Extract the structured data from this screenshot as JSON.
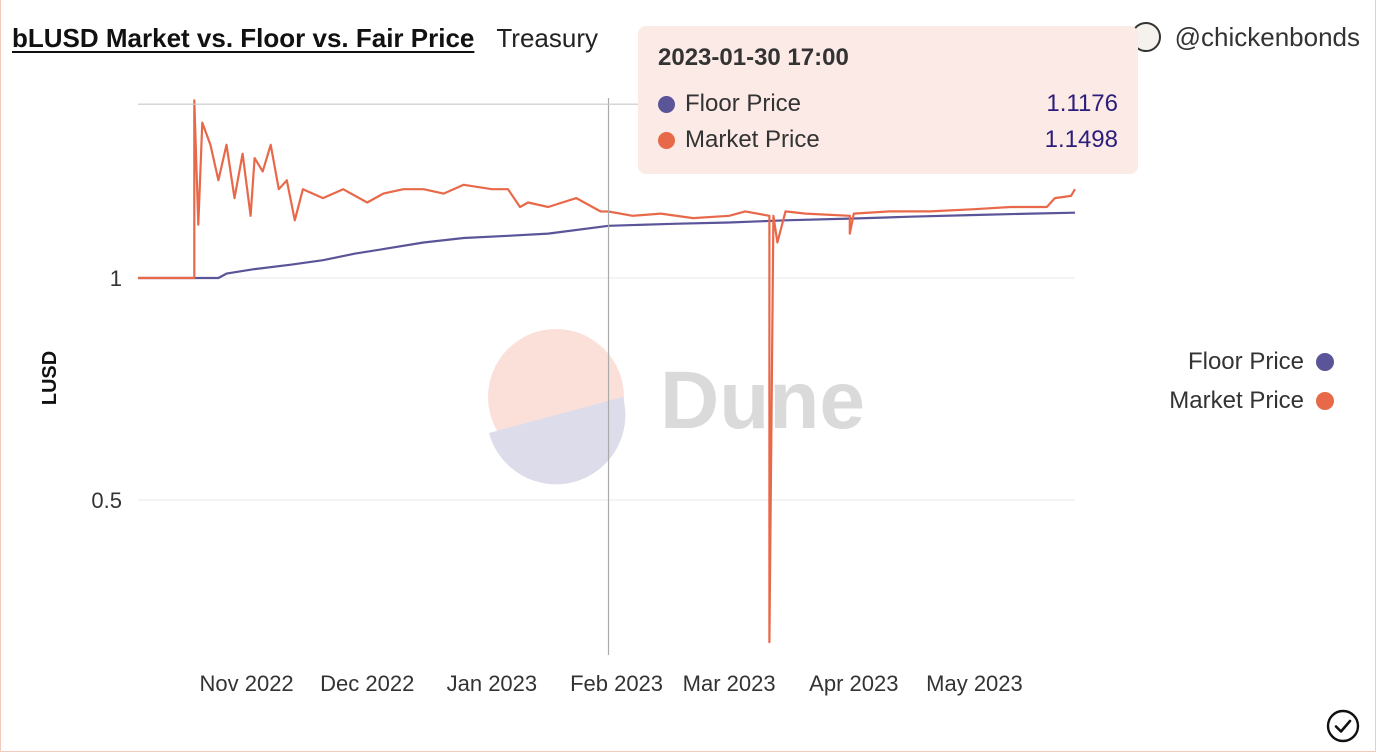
{
  "header": {
    "title": "bLUSD Market vs. Floor vs. Fair Price",
    "subtitle": "Treasury",
    "author": "@chickenbonds"
  },
  "tooltip": {
    "title": "2023-01-30 17:00",
    "rows": [
      {
        "name": "Floor Price",
        "value": "1.1176",
        "color": "#5a5499"
      },
      {
        "name": "Market Price",
        "value": "1.1498",
        "color": "#e8694a"
      }
    ]
  },
  "legend": [
    {
      "name": "Floor Price",
      "color": "#5a5499"
    },
    {
      "name": "Market Price",
      "color": "#e8694a"
    }
  ],
  "watermark": "Dune",
  "chart_data": {
    "type": "line",
    "title": "bLUSD Market vs. Floor vs. Fair Price",
    "ylabel": "LUSD",
    "xlabel": "",
    "y_ticks": [
      {
        "value": 1,
        "label": "1"
      },
      {
        "value": 0.5,
        "label": "0.5"
      }
    ],
    "x_ticks": [
      "Nov 2022",
      "Dec 2022",
      "Jan 2023",
      "Feb 2023",
      "Mar 2023",
      "Apr 2023",
      "May 2023"
    ],
    "ylim": [
      0.15,
      1.43
    ],
    "grid": true,
    "legend_position": "right",
    "series": [
      {
        "name": "Floor Price",
        "color": "#5a5499",
        "points": [
          [
            "2022-10-05",
            1.0
          ],
          [
            "2022-10-19",
            1.0
          ],
          [
            "2022-10-25",
            1.0
          ],
          [
            "2022-10-27",
            1.01
          ],
          [
            "2022-11-03",
            1.02
          ],
          [
            "2022-11-12",
            1.03
          ],
          [
            "2022-11-20",
            1.04
          ],
          [
            "2022-11-28",
            1.055
          ],
          [
            "2022-12-05",
            1.065
          ],
          [
            "2022-12-15",
            1.08
          ],
          [
            "2022-12-25",
            1.09
          ],
          [
            "2023-01-05",
            1.095
          ],
          [
            "2023-01-15",
            1.1
          ],
          [
            "2023-01-30",
            1.1176
          ],
          [
            "2023-02-15",
            1.122
          ],
          [
            "2023-03-01",
            1.125
          ],
          [
            "2023-03-15",
            1.13
          ],
          [
            "2023-04-01",
            1.134
          ],
          [
            "2023-04-15",
            1.138
          ],
          [
            "2023-05-01",
            1.142
          ],
          [
            "2023-05-15",
            1.145
          ],
          [
            "2023-05-26",
            1.147
          ]
        ]
      },
      {
        "name": "Market Price",
        "color": "#e8694a",
        "points": [
          [
            "2022-10-05",
            1.0
          ],
          [
            "2022-10-19",
            1.0
          ],
          [
            "2022-10-19",
            1.4
          ],
          [
            "2022-10-20",
            1.12
          ],
          [
            "2022-10-21",
            1.35
          ],
          [
            "2022-10-23",
            1.3
          ],
          [
            "2022-10-25",
            1.22
          ],
          [
            "2022-10-27",
            1.3
          ],
          [
            "2022-10-29",
            1.18
          ],
          [
            "2022-10-31",
            1.28
          ],
          [
            "2022-11-02",
            1.14
          ],
          [
            "2022-11-03",
            1.27
          ],
          [
            "2022-11-05",
            1.24
          ],
          [
            "2022-11-07",
            1.3
          ],
          [
            "2022-11-09",
            1.2
          ],
          [
            "2022-11-11",
            1.22
          ],
          [
            "2022-11-13",
            1.13
          ],
          [
            "2022-11-15",
            1.2
          ],
          [
            "2022-11-20",
            1.18
          ],
          [
            "2022-11-25",
            1.2
          ],
          [
            "2022-12-01",
            1.17
          ],
          [
            "2022-12-05",
            1.19
          ],
          [
            "2022-12-10",
            1.2
          ],
          [
            "2022-12-15",
            1.2
          ],
          [
            "2022-12-20",
            1.19
          ],
          [
            "2022-12-25",
            1.21
          ],
          [
            "2023-01-01",
            1.2
          ],
          [
            "2023-01-05",
            1.2
          ],
          [
            "2023-01-08",
            1.16
          ],
          [
            "2023-01-10",
            1.17
          ],
          [
            "2023-01-15",
            1.16
          ],
          [
            "2023-01-22",
            1.18
          ],
          [
            "2023-01-28",
            1.15
          ],
          [
            "2023-01-30",
            1.1498
          ],
          [
            "2023-02-05",
            1.14
          ],
          [
            "2023-02-12",
            1.145
          ],
          [
            "2023-02-20",
            1.135
          ],
          [
            "2023-03-01",
            1.14
          ],
          [
            "2023-03-05",
            1.15
          ],
          [
            "2023-03-11",
            1.14
          ],
          [
            "2023-03-11",
            0.18
          ],
          [
            "2023-03-12",
            1.14
          ],
          [
            "2023-03-13",
            1.08
          ],
          [
            "2023-03-15",
            1.15
          ],
          [
            "2023-03-20",
            1.145
          ],
          [
            "2023-03-31",
            1.14
          ],
          [
            "2023-03-31",
            1.1
          ],
          [
            "2023-04-01",
            1.145
          ],
          [
            "2023-04-10",
            1.15
          ],
          [
            "2023-04-20",
            1.15
          ],
          [
            "2023-05-01",
            1.155
          ],
          [
            "2023-05-10",
            1.16
          ],
          [
            "2023-05-19",
            1.16
          ],
          [
            "2023-05-21",
            1.18
          ],
          [
            "2023-05-25",
            1.185
          ],
          [
            "2023-05-26",
            1.2
          ]
        ]
      }
    ],
    "hover_x": "2023-01-30"
  }
}
